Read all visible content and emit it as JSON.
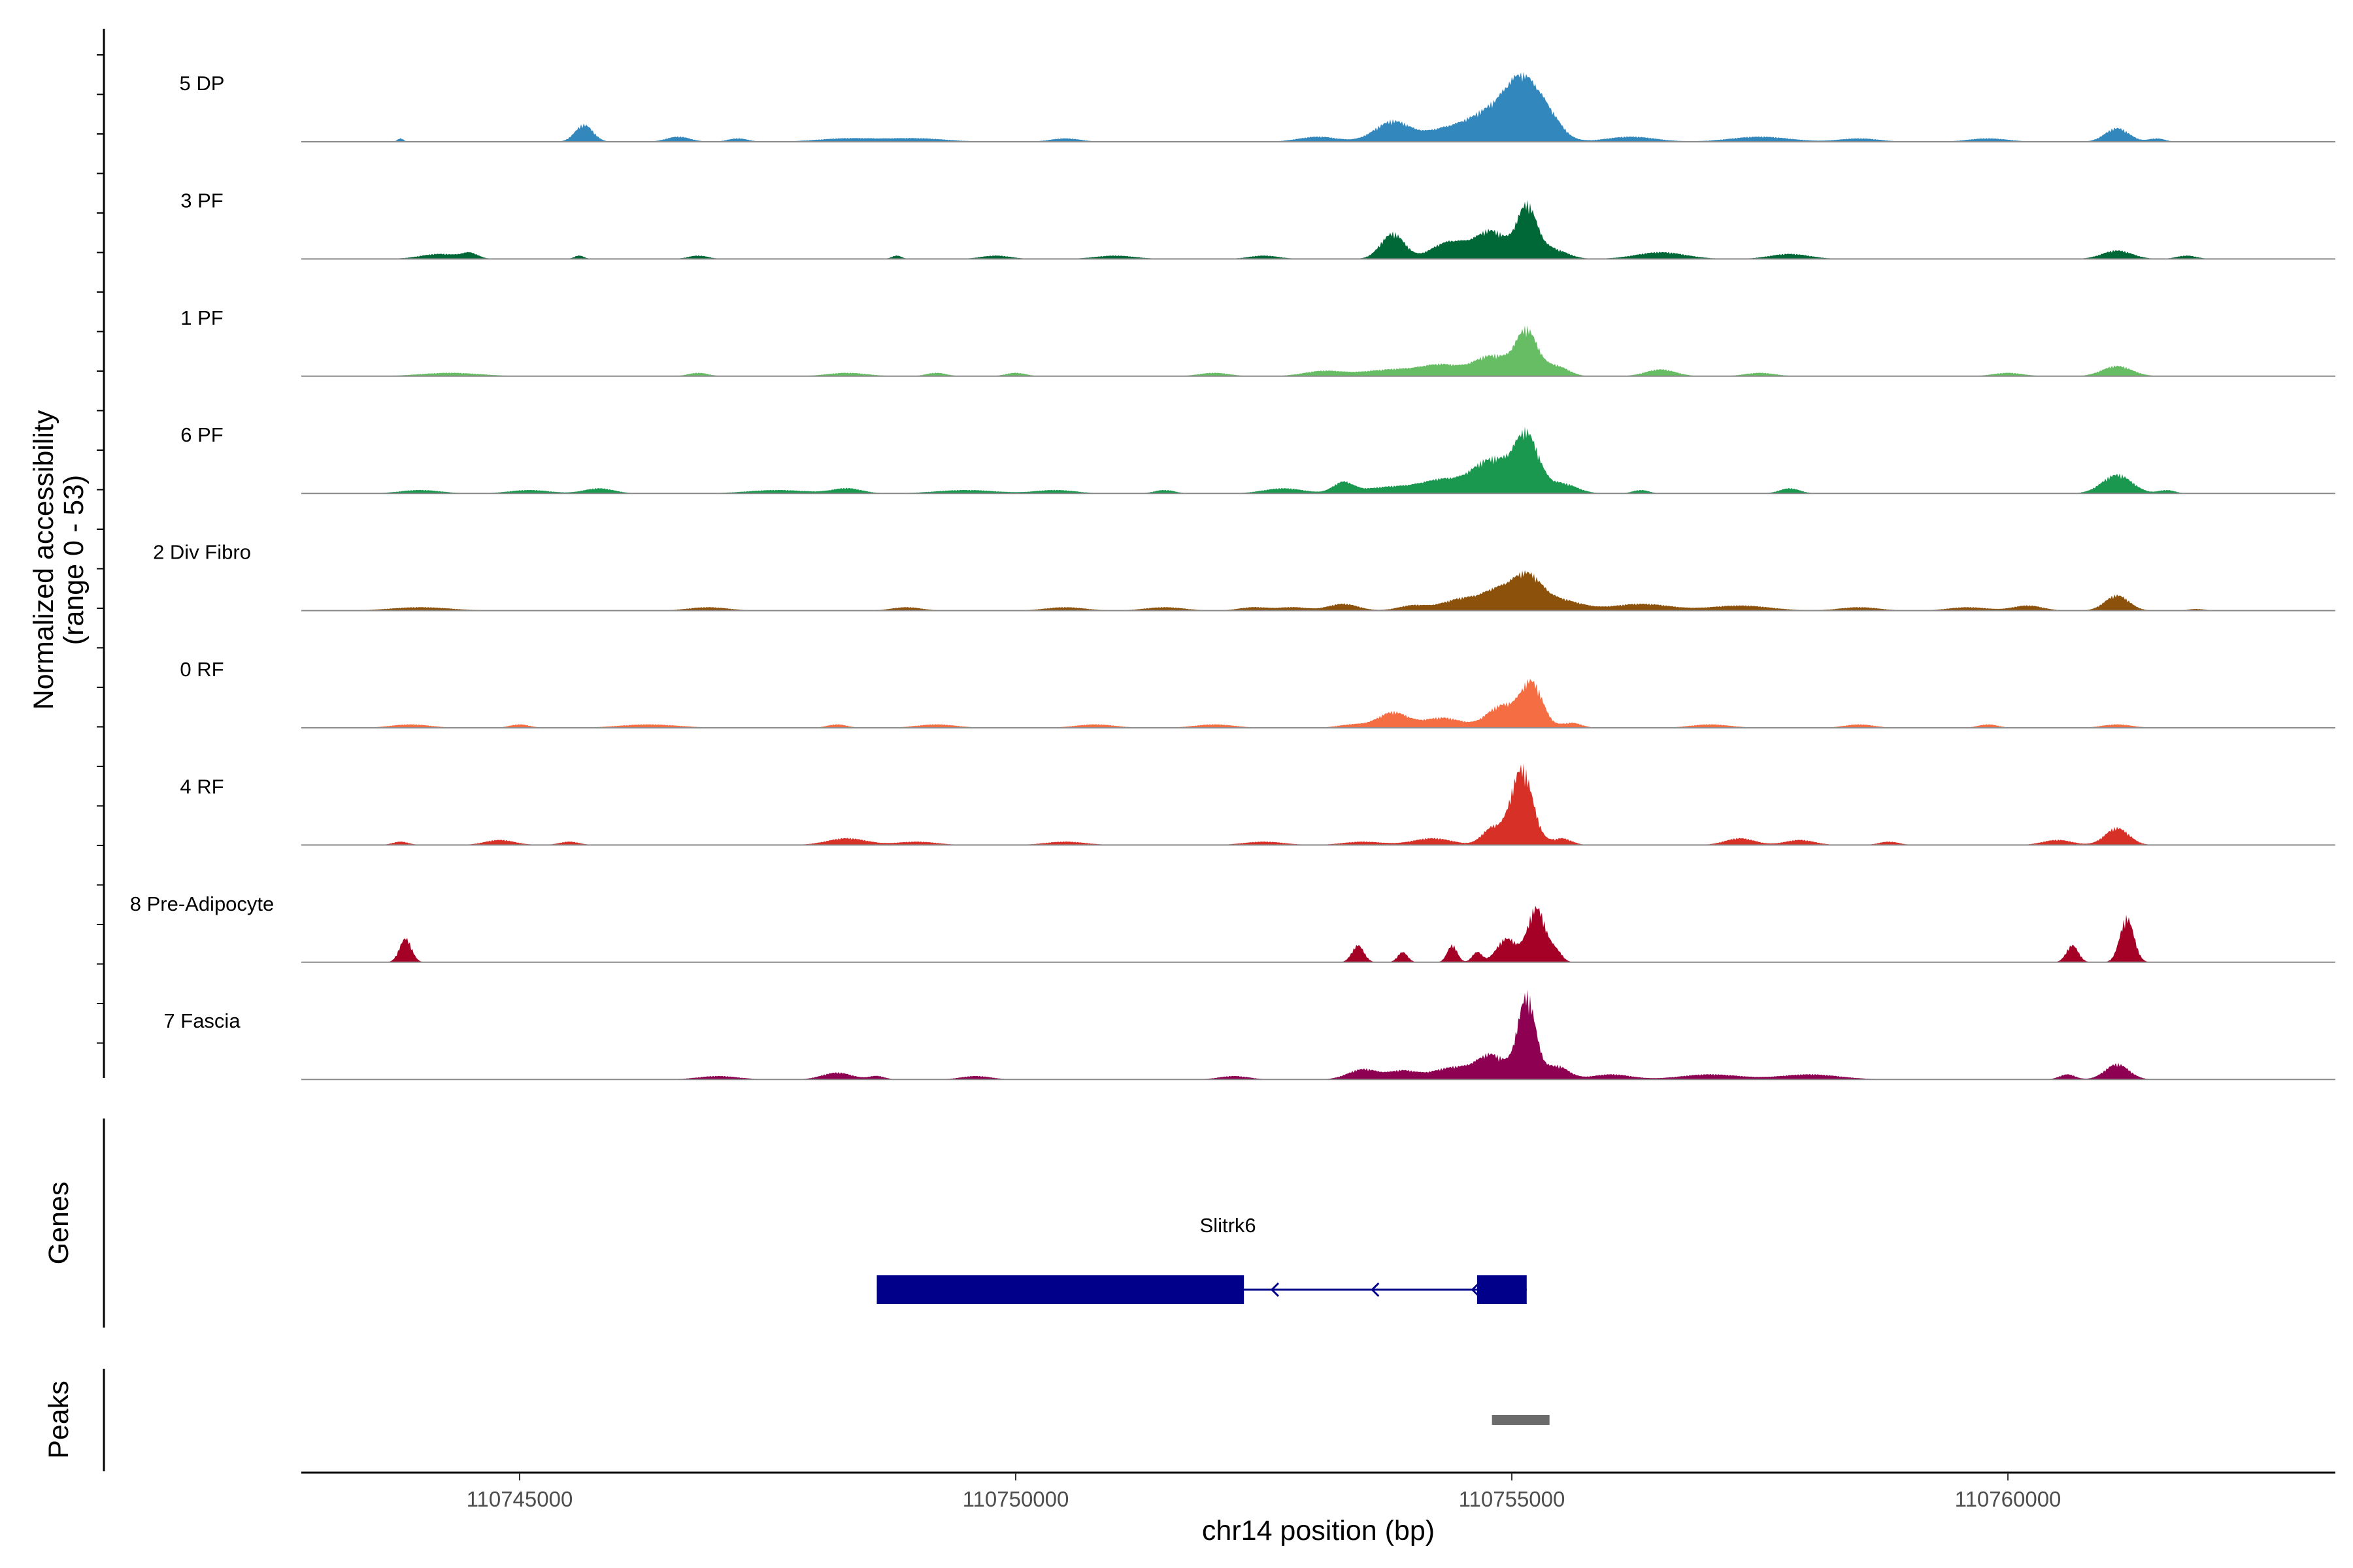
{
  "chart_data": {
    "type": "area",
    "title": "",
    "xlabel": "chr14 position (bp)",
    "ylabel": "Normalized accessibility",
    "ylabel_sub": "(range 0 - 53)",
    "xlim": [
      110742800,
      110763300
    ],
    "ylim": [
      0,
      53
    ],
    "x_ticks": [
      110745000,
      110750000,
      110755000,
      110760000
    ],
    "x_tick_labels": [
      "110745000",
      "110750000",
      "110755000",
      "110760000"
    ],
    "tracks": [
      {
        "name": "5 DP",
        "color": "#3288BD",
        "peaks": [
          [
            110743800,
            2,
            30
          ],
          [
            110745650,
            10,
            90
          ],
          [
            110746600,
            3,
            120
          ],
          [
            110747200,
            2,
            100
          ],
          [
            110748300,
            2,
            300
          ],
          [
            110749000,
            2,
            300
          ],
          [
            110750500,
            2,
            150
          ],
          [
            110753050,
            3,
            200
          ],
          [
            110753800,
            12,
            180
          ],
          [
            110754300,
            6,
            200
          ],
          [
            110754800,
            18,
            250
          ],
          [
            110755100,
            28,
            160
          ],
          [
            110755350,
            14,
            150
          ],
          [
            110756200,
            3,
            250
          ],
          [
            110757500,
            3,
            300
          ],
          [
            110758500,
            2,
            200
          ],
          [
            110759800,
            2,
            200
          ],
          [
            110761100,
            8,
            120
          ],
          [
            110761500,
            2,
            80
          ]
        ]
      },
      {
        "name": "3 PF",
        "color": "#006837",
        "peaks": [
          [
            110744200,
            3,
            200
          ],
          [
            110744500,
            3,
            80
          ],
          [
            110745600,
            2,
            50
          ],
          [
            110746800,
            2,
            100
          ],
          [
            110748800,
            2,
            50
          ],
          [
            110749800,
            2,
            150
          ],
          [
            110751000,
            2,
            200
          ],
          [
            110752500,
            2,
            150
          ],
          [
            110753800,
            15,
            120
          ],
          [
            110754300,
            7,
            150
          ],
          [
            110754500,
            6,
            150
          ],
          [
            110754800,
            16,
            150
          ],
          [
            110755150,
            30,
            100
          ],
          [
            110755400,
            6,
            150
          ],
          [
            110756500,
            4,
            250
          ],
          [
            110757800,
            3,
            200
          ],
          [
            110761100,
            5,
            150
          ],
          [
            110761800,
            2,
            100
          ]
        ]
      },
      {
        "name": "1 PF",
        "color": "#66BD63",
        "peaks": [
          [
            110744300,
            2,
            300
          ],
          [
            110746800,
            2,
            100
          ],
          [
            110748300,
            2,
            200
          ],
          [
            110749200,
            2,
            100
          ],
          [
            110750000,
            2,
            100
          ],
          [
            110752000,
            2,
            150
          ],
          [
            110753100,
            3,
            200
          ],
          [
            110753800,
            4,
            300
          ],
          [
            110754300,
            6,
            200
          ],
          [
            110754800,
            12,
            180
          ],
          [
            110755150,
            26,
            110
          ],
          [
            110755450,
            6,
            120
          ],
          [
            110756500,
            4,
            150
          ],
          [
            110757500,
            2,
            150
          ],
          [
            110760000,
            2,
            150
          ],
          [
            110761100,
            6,
            150
          ]
        ]
      },
      {
        "name": "6 PF",
        "color": "#1A9850",
        "peaks": [
          [
            110744000,
            2,
            200
          ],
          [
            110745100,
            2,
            200
          ],
          [
            110745800,
            3,
            150
          ],
          [
            110747600,
            2,
            300
          ],
          [
            110748300,
            3,
            150
          ],
          [
            110749500,
            2,
            300
          ],
          [
            110750400,
            2,
            200
          ],
          [
            110751500,
            2,
            100
          ],
          [
            110752700,
            3,
            200
          ],
          [
            110753300,
            6,
            100
          ],
          [
            110753800,
            4,
            300
          ],
          [
            110754300,
            7,
            200
          ],
          [
            110754800,
            20,
            200
          ],
          [
            110755150,
            32,
            120
          ],
          [
            110755500,
            6,
            150
          ],
          [
            110756300,
            2,
            80
          ],
          [
            110757800,
            3,
            100
          ],
          [
            110761100,
            11,
            150
          ],
          [
            110761600,
            2,
            80
          ]
        ]
      },
      {
        "name": "2 Div Fibro",
        "color": "#8C510A",
        "peaks": [
          [
            110744000,
            2,
            300
          ],
          [
            110746900,
            2,
            200
          ],
          [
            110748900,
            2,
            150
          ],
          [
            110750500,
            2,
            200
          ],
          [
            110751500,
            2,
            200
          ],
          [
            110752400,
            2,
            150
          ],
          [
            110752800,
            2,
            150
          ],
          [
            110753300,
            4,
            150
          ],
          [
            110754000,
            3,
            150
          ],
          [
            110754500,
            7,
            200
          ],
          [
            110754850,
            10,
            150
          ],
          [
            110755150,
            20,
            150
          ],
          [
            110755500,
            6,
            200
          ],
          [
            110756300,
            4,
            300
          ],
          [
            110757300,
            3,
            300
          ],
          [
            110758500,
            2,
            200
          ],
          [
            110759600,
            2,
            200
          ],
          [
            110760200,
            3,
            150
          ],
          [
            110761100,
            9,
            120
          ],
          [
            110761900,
            1,
            80
          ]
        ]
      },
      {
        "name": "0 RF",
        "color": "#F46D43",
        "peaks": [
          [
            110743900,
            2,
            200
          ],
          [
            110745000,
            2,
            100
          ],
          [
            110746300,
            2,
            300
          ],
          [
            110748200,
            2,
            100
          ],
          [
            110749200,
            2,
            200
          ],
          [
            110750800,
            2,
            200
          ],
          [
            110752000,
            2,
            200
          ],
          [
            110753400,
            2,
            150
          ],
          [
            110753800,
            9,
            150
          ],
          [
            110754300,
            6,
            200
          ],
          [
            110754900,
            13,
            150
          ],
          [
            110755200,
            26,
            110
          ],
          [
            110755600,
            3,
            100
          ],
          [
            110757000,
            2,
            200
          ],
          [
            110758500,
            2,
            150
          ],
          [
            110759800,
            2,
            100
          ],
          [
            110761100,
            2,
            150
          ]
        ]
      },
      {
        "name": "4 RF",
        "color": "#D73027",
        "peaks": [
          [
            110743800,
            2,
            80
          ],
          [
            110744800,
            3,
            150
          ],
          [
            110745500,
            2,
            100
          ],
          [
            110748300,
            4,
            200
          ],
          [
            110749000,
            2,
            200
          ],
          [
            110750500,
            2,
            200
          ],
          [
            110752500,
            2,
            200
          ],
          [
            110753500,
            2,
            200
          ],
          [
            110754200,
            4,
            200
          ],
          [
            110754800,
            10,
            100
          ],
          [
            110755100,
            45,
            110
          ],
          [
            110755500,
            4,
            100
          ],
          [
            110757300,
            4,
            150
          ],
          [
            110757900,
            3,
            150
          ],
          [
            110758800,
            2,
            100
          ],
          [
            110760500,
            3,
            150
          ],
          [
            110761100,
            10,
            120
          ]
        ]
      },
      {
        "name": "8 Pre-Adipocyte",
        "color": "#A50026",
        "peaks": [
          [
            110743850,
            14,
            60
          ],
          [
            110753450,
            10,
            60
          ],
          [
            110753900,
            6,
            50
          ],
          [
            110754400,
            10,
            50
          ],
          [
            110754650,
            6,
            50
          ],
          [
            110754950,
            14,
            100
          ],
          [
            110755250,
            32,
            90
          ],
          [
            110755450,
            6,
            60
          ],
          [
            110760650,
            10,
            60
          ],
          [
            110761200,
            26,
            70
          ]
        ]
      },
      {
        "name": "7 Fascia",
        "color": "#8E0152",
        "peaks": [
          [
            110747000,
            2,
            200
          ],
          [
            110748200,
            4,
            150
          ],
          [
            110748600,
            2,
            80
          ],
          [
            110749600,
            2,
            150
          ],
          [
            110752200,
            2,
            150
          ],
          [
            110753500,
            6,
            150
          ],
          [
            110753900,
            5,
            150
          ],
          [
            110754400,
            7,
            200
          ],
          [
            110754800,
            14,
            150
          ],
          [
            110755150,
            48,
            90
          ],
          [
            110755450,
            8,
            120
          ],
          [
            110756000,
            3,
            200
          ],
          [
            110757000,
            3,
            300
          ],
          [
            110758000,
            3,
            300
          ],
          [
            110760600,
            3,
            80
          ],
          [
            110761100,
            9,
            120
          ]
        ]
      }
    ],
    "gene_track_label": "Genes",
    "genes": [
      {
        "name": "Slitrk6",
        "strand": "-",
        "exons": [
          [
            110748600,
            110752300
          ],
          [
            110754650,
            110755150
          ]
        ],
        "span": [
          110748600,
          110755150
        ]
      }
    ],
    "peaks_track_label": "Peaks",
    "peak_regions": [
      [
        110754800,
        110755380
      ]
    ]
  }
}
